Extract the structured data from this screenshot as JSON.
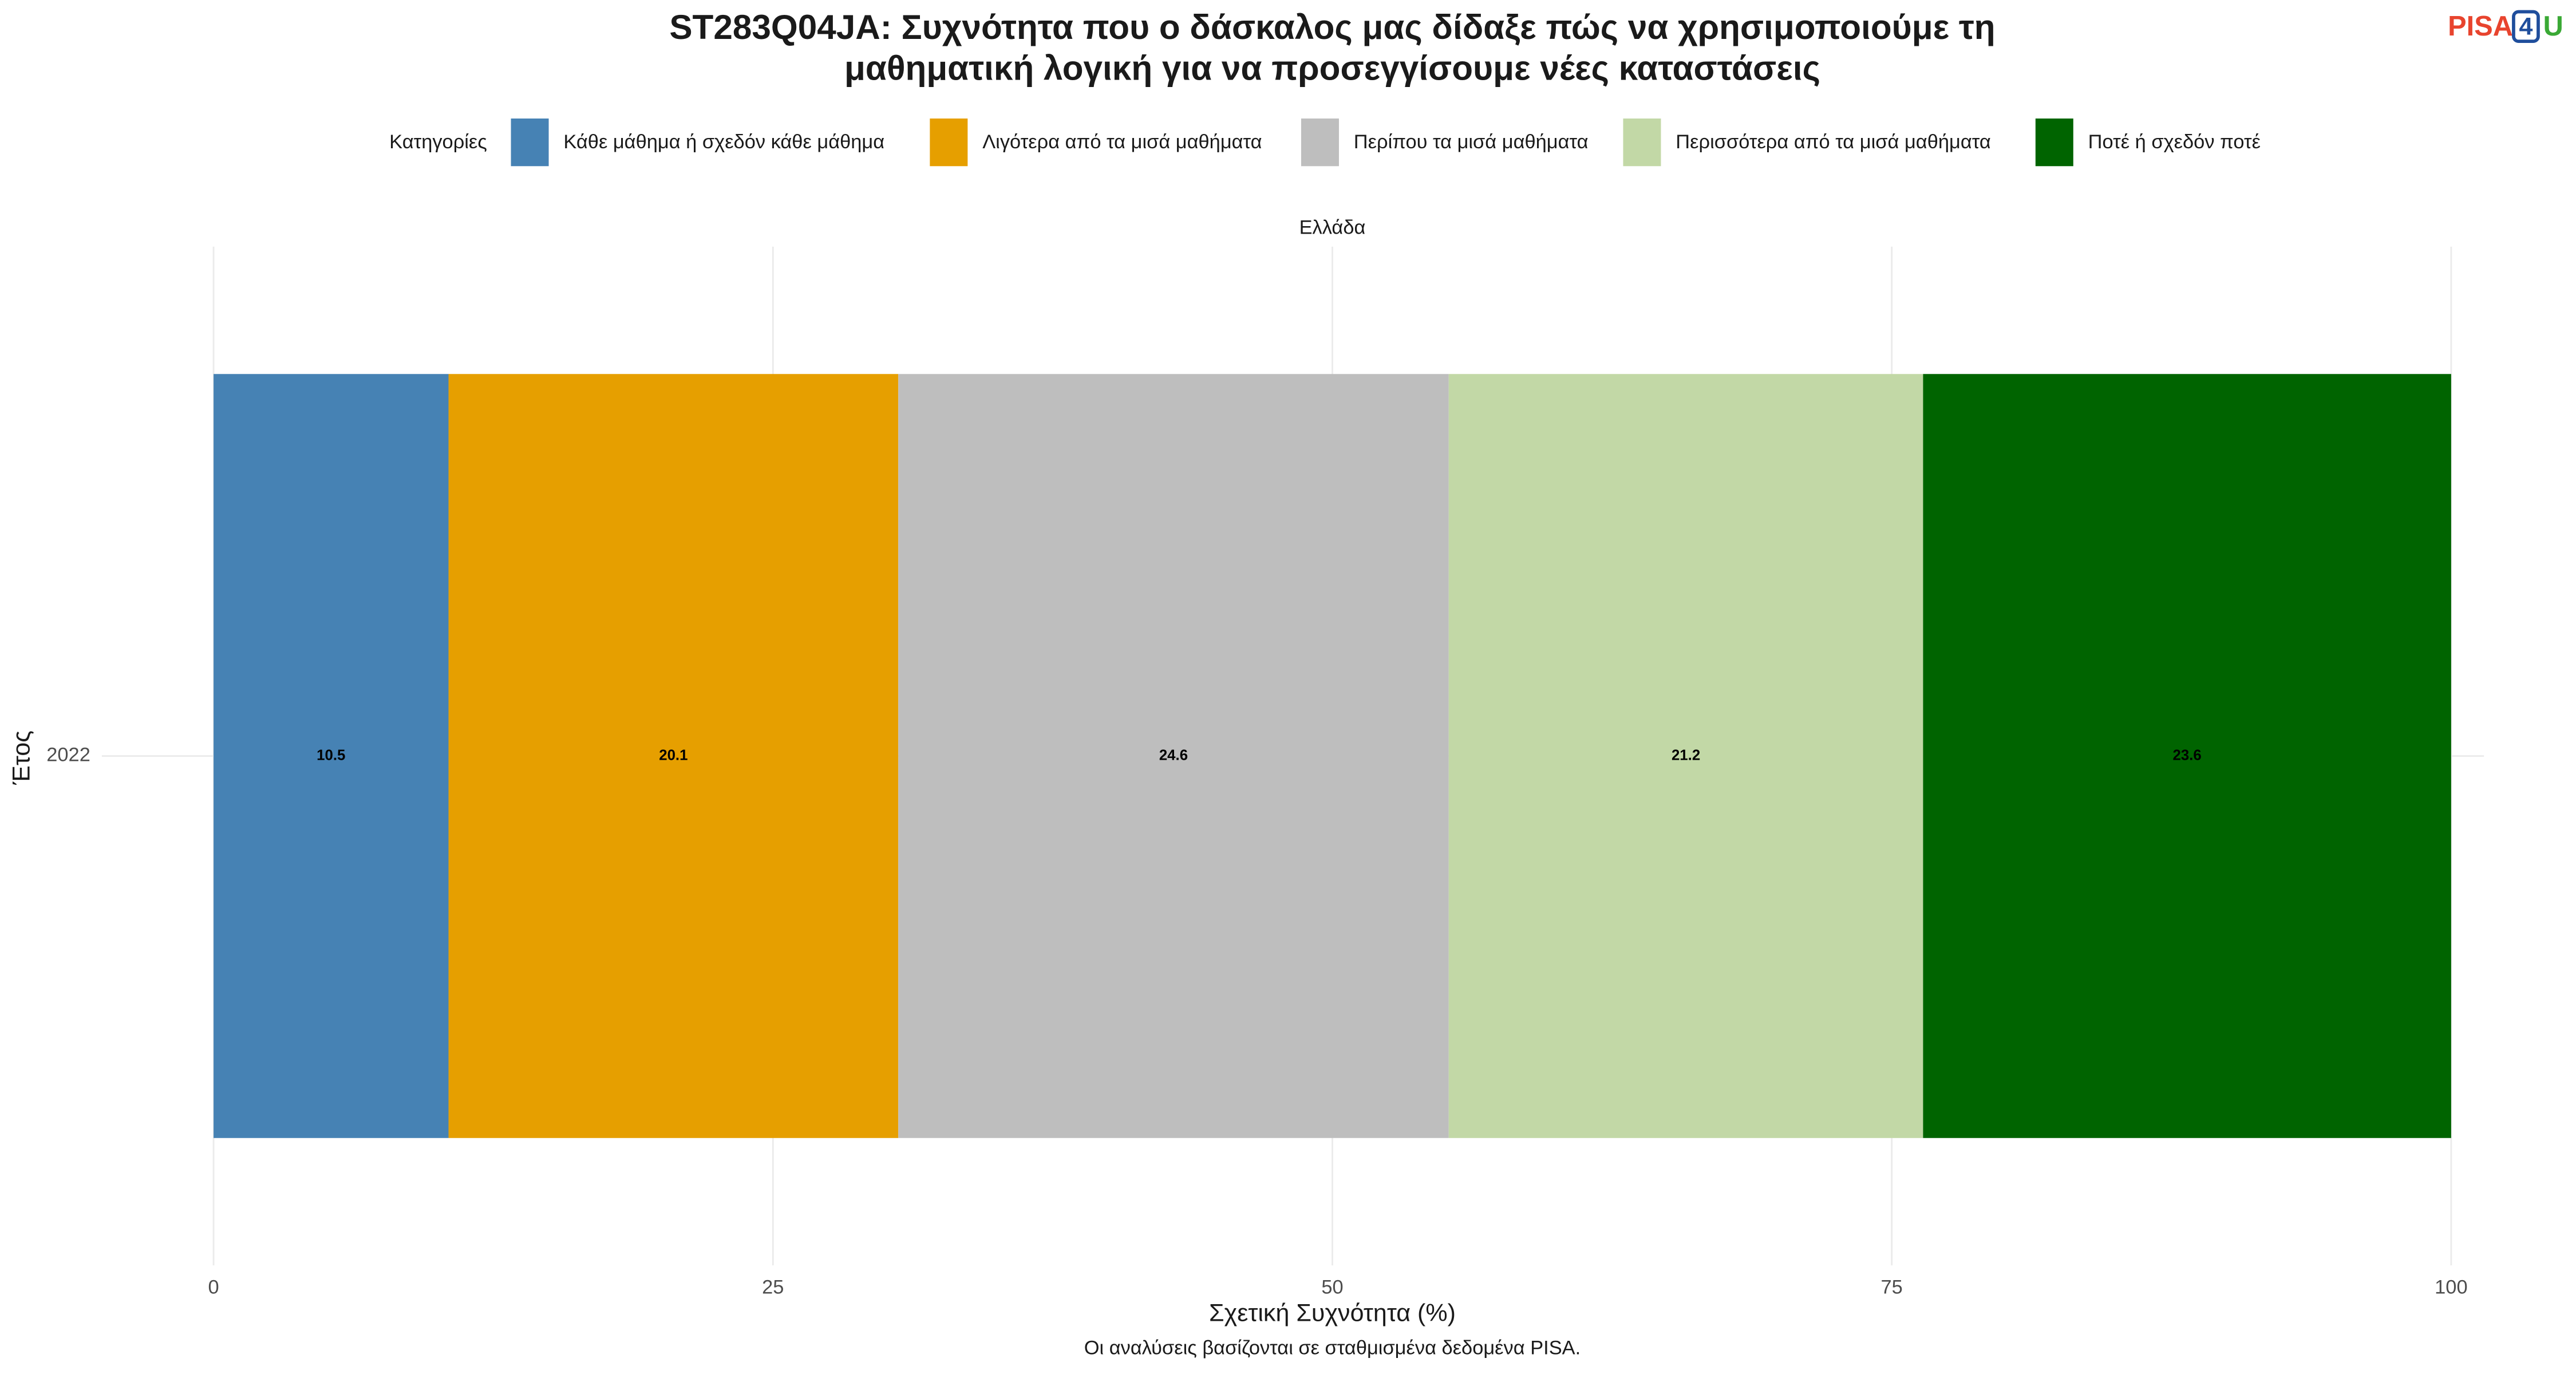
{
  "chart_data": {
    "type": "stacked-bar-horizontal",
    "title": [
      "ST283Q04JA: Συχνότητα που ο δάσκαλος μας δίδαξε πώς να χρησιμοποιούμε τη",
      "μαθηματική λογική για να προσεγγίσουμε νέες καταστάσεις"
    ],
    "logo": [
      "PISA",
      "4",
      "U"
    ],
    "legend_title": "Κατηγορίες",
    "facet": "Ελλάδα",
    "x_label": "Σχετική Συχνότητα (%)",
    "y_label": "Έτος",
    "caption": "Οι αναλύσεις βασίζονται σε σταθμισμένα δεδομένα PISA.",
    "categories": [
      "2022"
    ],
    "series": [
      {
        "name": "Κάθε μάθημα ή σχεδόν κάθε μάθημα",
        "color": "#4682b4",
        "values": [
          10.5
        ]
      },
      {
        "name": "Λιγότερα από τα μισά μαθήματα",
        "color": "#e69f00",
        "values": [
          20.1
        ]
      },
      {
        "name": "Περίπου τα μισά μαθήματα",
        "color": "#bebebe",
        "values": [
          24.6
        ]
      },
      {
        "name": "Περισσότερα από τα μισά μαθήματα",
        "color": "#c2d8a6",
        "values": [
          21.2
        ]
      },
      {
        "name": "Ποτέ ή σχεδόν ποτέ",
        "color": "#006400",
        "values": [
          23.6
        ]
      }
    ],
    "xlim": [
      0,
      100
    ],
    "xticks": [
      0,
      25,
      50,
      75,
      100
    ],
    "grid": true
  }
}
